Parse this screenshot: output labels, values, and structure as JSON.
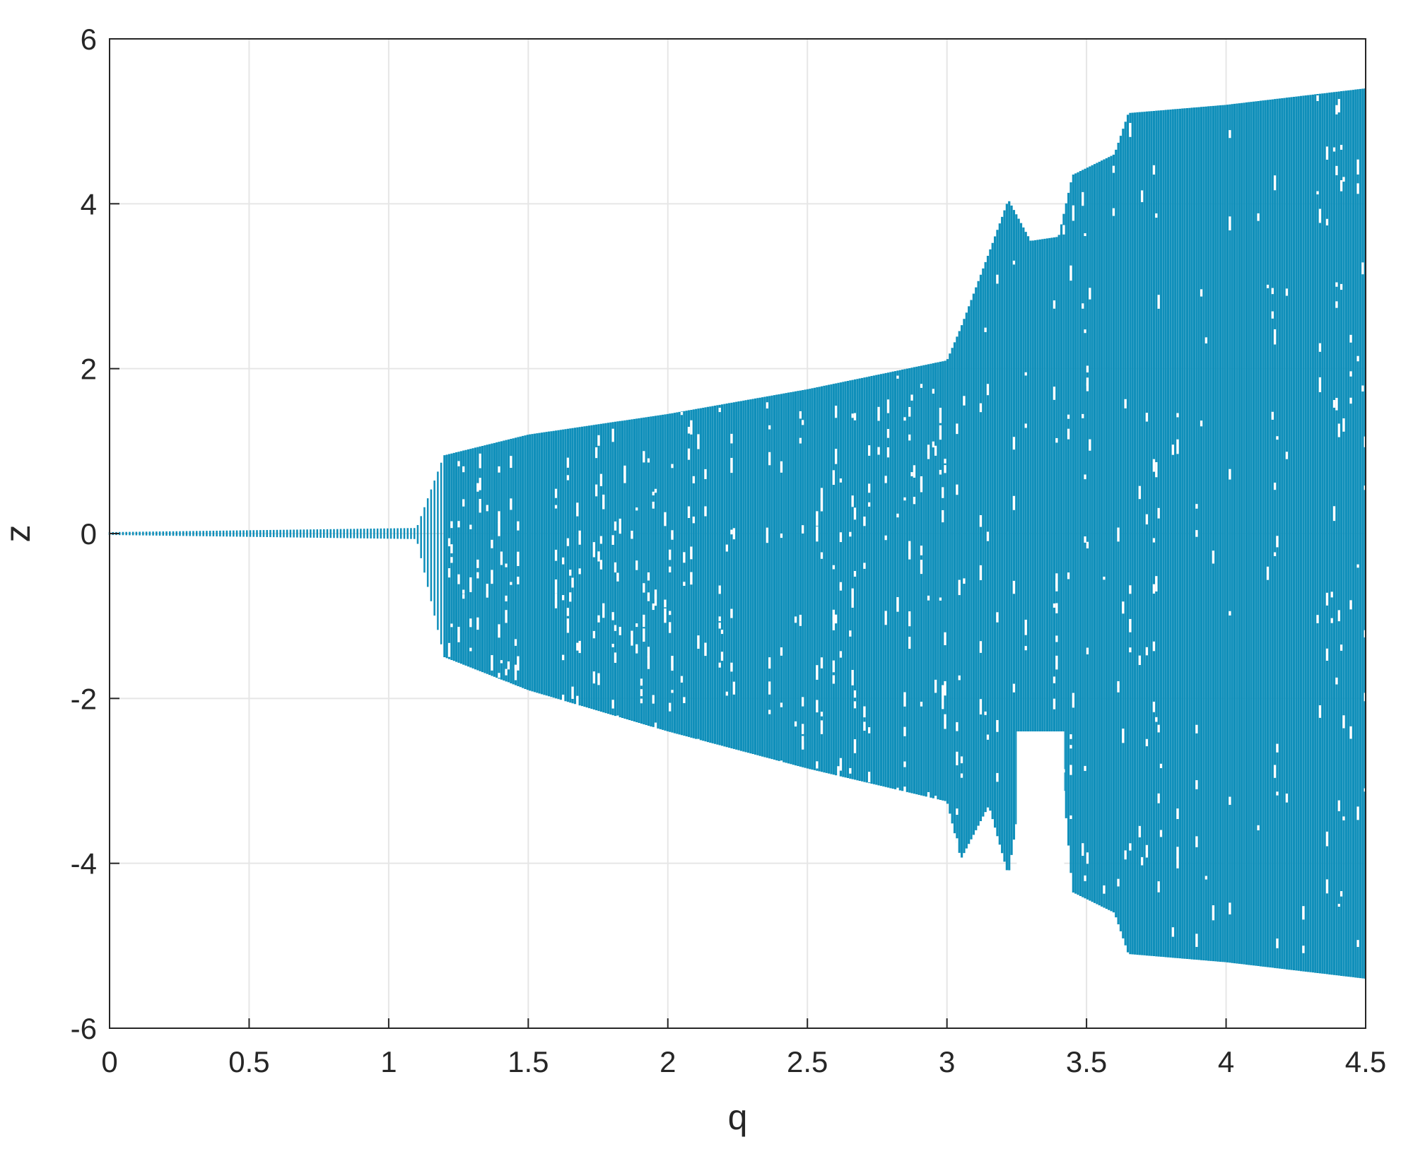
{
  "chart_data": {
    "type": "scatter",
    "title": "",
    "xlabel": "q",
    "ylabel": "z",
    "xlim": [
      0,
      4.5
    ],
    "ylim": [
      -6,
      6
    ],
    "xticks": [
      0,
      0.5,
      1,
      1.5,
      2,
      2.5,
      3,
      3.5,
      4,
      4.5
    ],
    "yticks": [
      -6,
      -4,
      -2,
      0,
      2,
      4,
      6
    ],
    "xtick_labels": [
      "0",
      "0.5",
      "1",
      "1.5",
      "2",
      "2.5",
      "3",
      "3.5",
      "4",
      "4.5"
    ],
    "ytick_labels": [
      "-6",
      "-4",
      "-2",
      "0",
      "2",
      "4",
      "6"
    ],
    "grid": true,
    "color": "#0f8fba",
    "series": [
      {
        "points_envelope": [
          {
            "q": 0.0,
            "zmin": 0.0,
            "zmax": 0.0
          },
          {
            "q": 1.1,
            "zmin": -0.05,
            "zmax": 0.05
          },
          {
            "q": 1.2,
            "zmin": -1.5,
            "zmax": 0.95
          },
          {
            "q": 1.5,
            "zmin": -1.9,
            "zmax": 1.2
          },
          {
            "q": 2.0,
            "zmin": -2.4,
            "zmax": 1.45
          },
          {
            "q": 2.5,
            "zmin": -2.85,
            "zmax": 1.75
          },
          {
            "q": 3.0,
            "zmin": -3.25,
            "zmax": 2.1
          },
          {
            "q": 3.05,
            "zmin": -3.95,
            "zmax": 2.5
          },
          {
            "q": 3.15,
            "zmin": -3.3,
            "zmax": 3.4
          },
          {
            "q": 3.22,
            "zmin": -4.15,
            "zmax": 4.05
          },
          {
            "q": 3.3,
            "zmin": -2.4,
            "zmax": 3.55
          },
          {
            "q": 3.4,
            "zmin": -2.4,
            "zmax": 3.6
          },
          {
            "q": 3.45,
            "zmin": -4.35,
            "zmax": 4.35
          },
          {
            "q": 3.6,
            "zmin": -4.6,
            "zmax": 4.6
          },
          {
            "q": 3.65,
            "zmin": -5.1,
            "zmax": 5.1
          },
          {
            "q": 4.0,
            "zmin": -5.2,
            "zmax": 5.2
          },
          {
            "q": 4.5,
            "zmin": -5.4,
            "zmax": 5.4
          }
        ]
      }
    ]
  }
}
